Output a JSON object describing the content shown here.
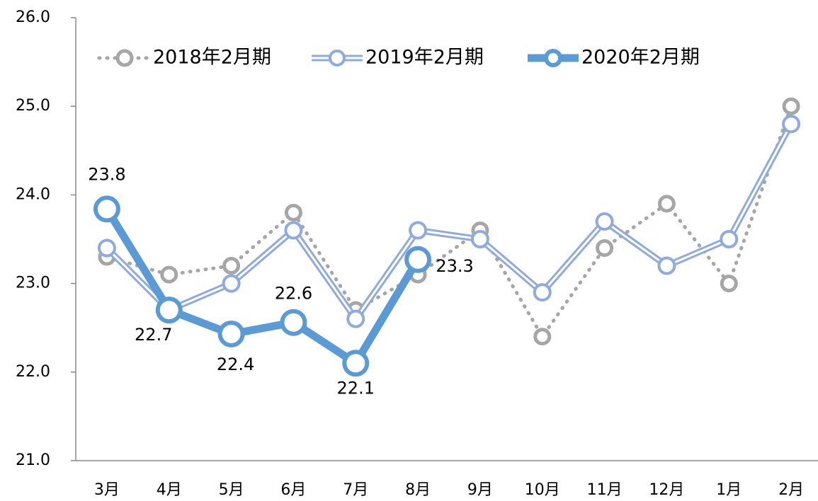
{
  "chart_data": {
    "type": "line",
    "categories": [
      "3月",
      "4月",
      "5月",
      "6月",
      "7月",
      "8月",
      "9月",
      "10月",
      "11月",
      "12月",
      "1月",
      "2月"
    ],
    "series": [
      {
        "name": "2018年2月期",
        "color": "#a6a6a6",
        "values": [
          23.3,
          23.1,
          23.2,
          23.8,
          22.7,
          23.1,
          23.6,
          22.4,
          23.4,
          23.9,
          23.0,
          25.0
        ]
      },
      {
        "name": "2019年2月期",
        "color": "#8faadc",
        "values": [
          23.4,
          22.7,
          23.0,
          23.6,
          22.6,
          23.6,
          23.5,
          22.9,
          23.7,
          23.2,
          23.5,
          24.8
        ]
      },
      {
        "name": "2020年2月期",
        "color": "#5b9bd5",
        "values": [
          23.84,
          22.7,
          22.43,
          22.56,
          22.1,
          23.27,
          null,
          null,
          null,
          null,
          null,
          null
        ],
        "value_labels": [
          "23.8",
          "22.7",
          "22.4",
          "22.6",
          "22.1",
          "23.3",
          null,
          null,
          null,
          null,
          null,
          null
        ]
      }
    ],
    "ylim": [
      21,
      26
    ],
    "yticks": [
      {
        "value": 21,
        "label": "21.0"
      },
      {
        "value": 22,
        "label": "22.0"
      },
      {
        "value": 23,
        "label": "23.0"
      },
      {
        "value": 24,
        "label": "24.0"
      },
      {
        "value": 25,
        "label": "25.0"
      },
      {
        "value": 26,
        "label": "26.0"
      }
    ],
    "legend": "top",
    "grid": false
  }
}
